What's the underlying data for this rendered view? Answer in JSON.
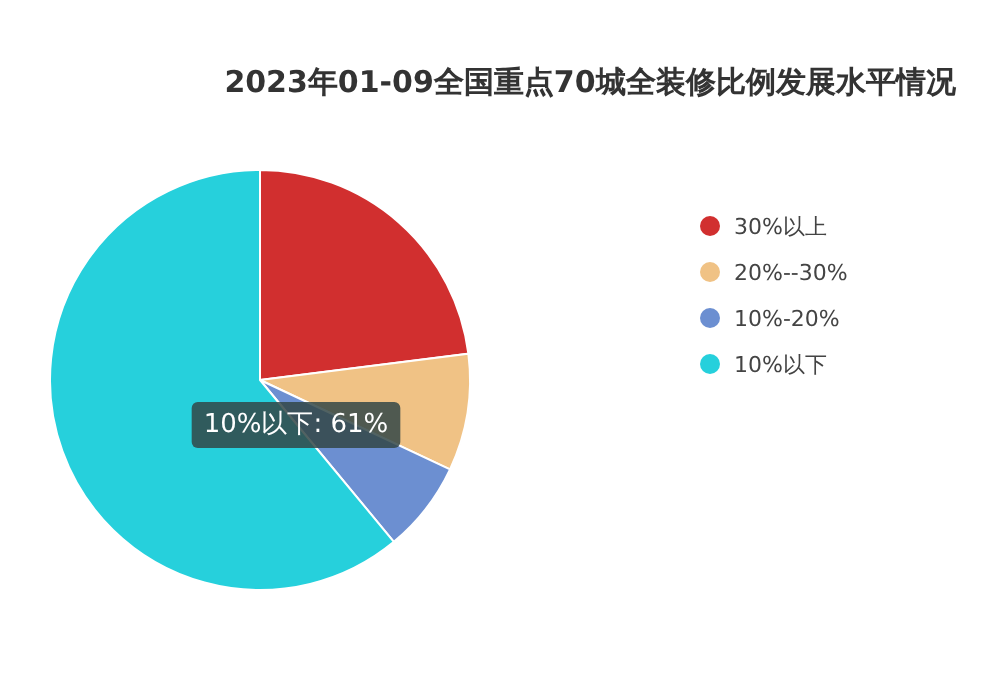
{
  "chart_data": {
    "type": "pie",
    "title": "2023年01-09全国重点70城全装修比例发展水平情况",
    "categories": [
      "30%以上",
      "20%--30%",
      "10%-20%",
      "10%以下"
    ],
    "values": [
      23,
      9,
      7,
      61
    ],
    "colors": [
      "#d12f2f",
      "#f0c285",
      "#6c8fd1",
      "#26d0dc"
    ],
    "legend": "right",
    "annotations": [
      "10%以下: 61%"
    ]
  }
}
